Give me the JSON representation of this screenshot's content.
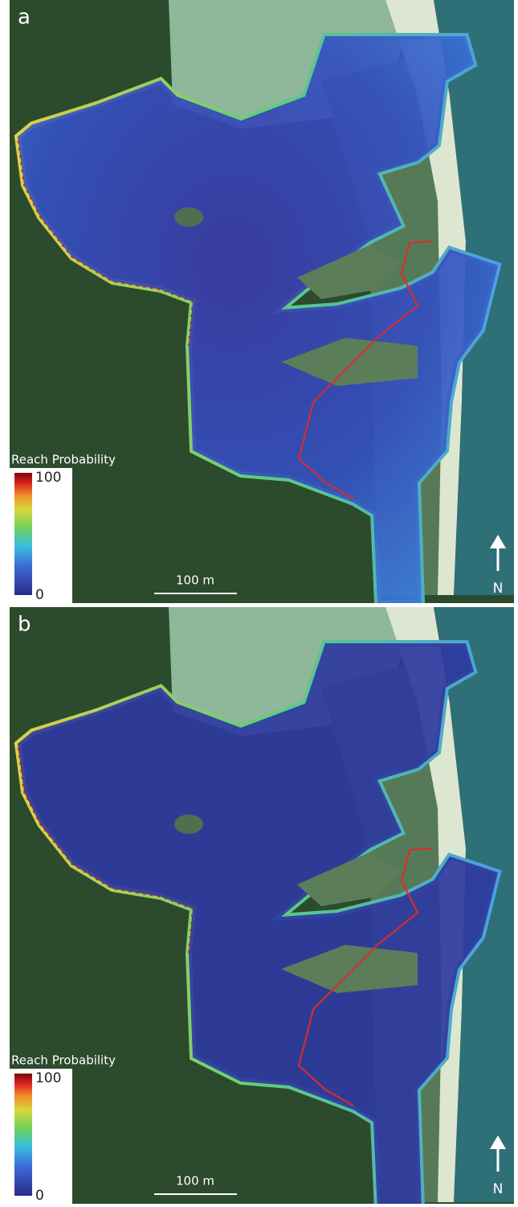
{
  "panels": [
    {
      "label": "a",
      "legend": {
        "title": "Reach Probability",
        "max": "100",
        "min": "0"
      },
      "scale_bar": "100 m",
      "north": "N"
    },
    {
      "label": "b",
      "legend": {
        "title": "Reach Probability",
        "max": "100",
        "min": "0"
      },
      "scale_bar": "100 m",
      "north": "N"
    }
  ]
}
